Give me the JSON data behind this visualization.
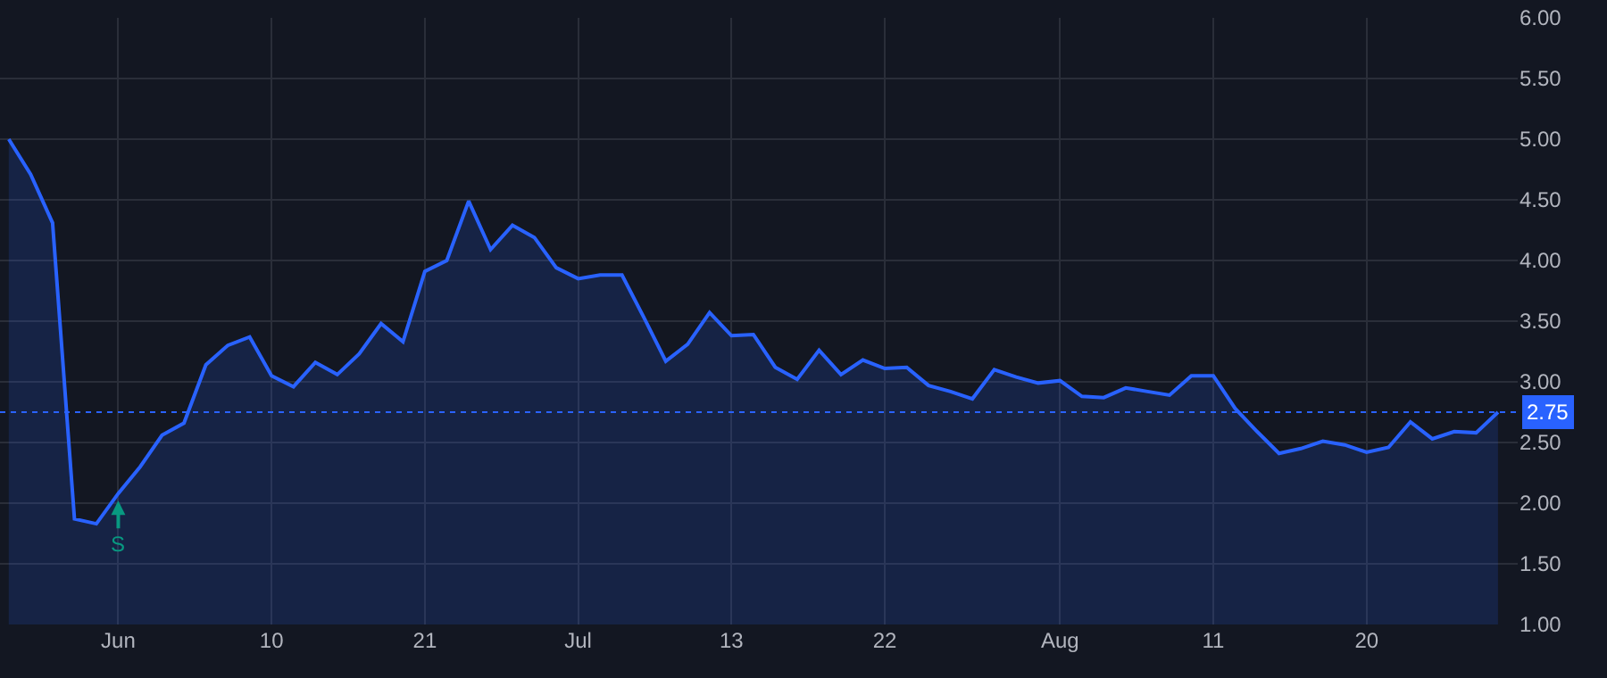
{
  "chart_data": {
    "type": "area",
    "categories": [
      null,
      null,
      null,
      null,
      null,
      "Jun",
      null,
      null,
      null,
      null,
      null,
      null,
      "10",
      null,
      null,
      null,
      null,
      null,
      null,
      "21",
      null,
      null,
      null,
      null,
      null,
      null,
      "Jul",
      null,
      null,
      null,
      null,
      null,
      null,
      "13",
      null,
      null,
      null,
      null,
      null,
      null,
      "22",
      null,
      null,
      null,
      null,
      null,
      null,
      null,
      "Aug",
      null,
      null,
      null,
      null,
      null,
      null,
      "11",
      null,
      null,
      null,
      null,
      null,
      null,
      "20",
      null,
      null,
      null,
      null,
      null,
      null
    ],
    "series": [
      {
        "color": "#2962ff",
        "values": [
          5.0,
          4.71,
          4.31,
          1.87,
          1.83,
          2.08,
          2.3,
          2.56,
          2.66,
          3.14,
          3.3,
          3.37,
          3.05,
          2.96,
          3.16,
          3.06,
          3.23,
          3.48,
          3.33,
          3.91,
          4.0,
          4.49,
          4.09,
          4.29,
          4.19,
          3.94,
          3.85,
          3.88,
          3.88,
          3.53,
          3.17,
          3.31,
          3.57,
          3.38,
          3.39,
          3.12,
          3.02,
          3.26,
          3.06,
          3.18,
          3.11,
          3.12,
          2.97,
          2.92,
          2.86,
          3.1,
          3.04,
          2.99,
          3.01,
          2.88,
          2.87,
          2.95,
          2.92,
          2.89,
          3.05,
          3.05,
          2.78,
          2.59,
          2.41,
          2.45,
          2.51,
          2.48,
          2.42,
          2.46,
          2.67,
          2.53,
          2.59,
          2.58,
          2.75
        ]
      }
    ],
    "ylim": [
      1,
      6
    ],
    "yticks": [
      {
        "value": 1,
        "label": "1.00"
      },
      {
        "value": 1.5,
        "label": "1.50"
      },
      {
        "value": 2,
        "label": "2.00"
      },
      {
        "value": 2.5,
        "label": "2.50"
      },
      {
        "value": 3,
        "label": "3.00"
      },
      {
        "value": 3.5,
        "label": "3.50"
      },
      {
        "value": 4,
        "label": "4.00"
      },
      {
        "value": 4.5,
        "label": "4.50"
      },
      {
        "value": 5,
        "label": "5.00"
      },
      {
        "value": 5.5,
        "label": "5.50"
      },
      {
        "value": 6,
        "label": "6.00"
      }
    ],
    "ref_lines": [
      {
        "axis": "y",
        "value": 2.75,
        "label": "2.75",
        "color": "#2962ff",
        "line_style": "dotted"
      }
    ],
    "annotations": [
      {
        "text": "S",
        "x": "Jun",
        "y": 2.02
      }
    ],
    "grid": true,
    "marker": "none",
    "line_style": "solid"
  }
}
